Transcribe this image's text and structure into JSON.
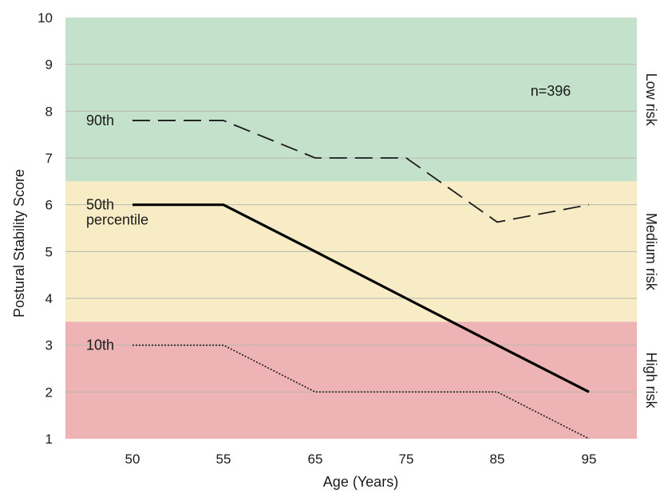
{
  "chart_data": {
    "type": "line",
    "xlabel": "Age (Years)",
    "ylabel": "Postural Stability Score",
    "categories": [
      "50",
      "55",
      "65",
      "75",
      "85",
      "95"
    ],
    "ylim": [
      1,
      10
    ],
    "yticks": [
      1,
      2,
      3,
      4,
      5,
      6,
      7,
      8,
      9,
      10
    ],
    "grid": true,
    "annotation": "n=396",
    "zones": [
      {
        "label": "Low risk",
        "from": 6.5,
        "to": 10,
        "color": "#c4e2cb"
      },
      {
        "label": "Medium risk",
        "from": 3.5,
        "to": 6.5,
        "color": "#f7ecc5"
      },
      {
        "label": "High risk",
        "from": 1,
        "to": 3.5,
        "color": "#eeb3b5"
      }
    ],
    "series": [
      {
        "label": [
          "90th"
        ],
        "values": [
          7.8,
          7.8,
          7.0,
          7.0,
          5.63,
          6.0
        ],
        "style": "dashed",
        "color": "#1a1a1a"
      },
      {
        "label": [
          "50th",
          "percentile"
        ],
        "values": [
          6.0,
          6.0,
          5.0,
          4.0,
          3.0,
          2.0
        ],
        "style": "solid",
        "color": "#000000"
      },
      {
        "label": [
          "10th"
        ],
        "values": [
          3.0,
          3.0,
          2.0,
          2.0,
          2.0,
          1.0
        ],
        "style": "dotted",
        "color": "#1a1a1a"
      }
    ]
  }
}
